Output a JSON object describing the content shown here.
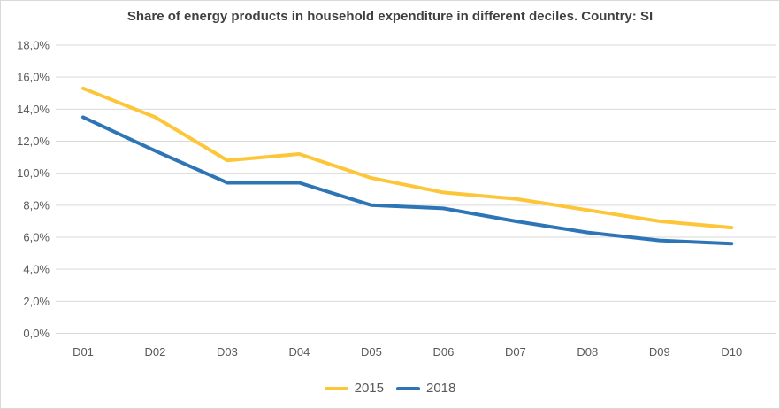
{
  "title": "Share of energy products in household expenditure in different deciles. Country: SI",
  "colors": {
    "series_2015": "#fdc538",
    "series_2018": "#2e75b6",
    "gridline": "#d9d9d9",
    "axis_text": "#595959",
    "title_text": "#404040",
    "border": "#d9d9d9",
    "background": "#ffffff"
  },
  "chart_data": {
    "type": "line",
    "title": "Share of energy products in household expenditure in different deciles. Country: SI",
    "categories": [
      "D01",
      "D02",
      "D03",
      "D04",
      "D05",
      "D06",
      "D07",
      "D08",
      "D09",
      "D10"
    ],
    "series": [
      {
        "name": "2015",
        "color": "#fdc538",
        "values": [
          15.3,
          13.5,
          10.8,
          11.2,
          9.7,
          8.8,
          8.4,
          7.7,
          7.0,
          6.6
        ]
      },
      {
        "name": "2018",
        "color": "#2e75b6",
        "values": [
          13.5,
          11.4,
          9.4,
          9.4,
          8.0,
          7.8,
          7.0,
          6.3,
          5.8,
          5.6
        ]
      }
    ],
    "xlabel": "",
    "ylabel": "",
    "ylim": [
      0,
      18
    ],
    "ytick_step": 2,
    "ytick_labels": [
      "0,0%",
      "2,0%",
      "4,0%",
      "6,0%",
      "8,0%",
      "10,0%",
      "12,0%",
      "14,0%",
      "16,0%",
      "18,0%"
    ],
    "grid": "horizontal",
    "legend_position": "bottom"
  }
}
